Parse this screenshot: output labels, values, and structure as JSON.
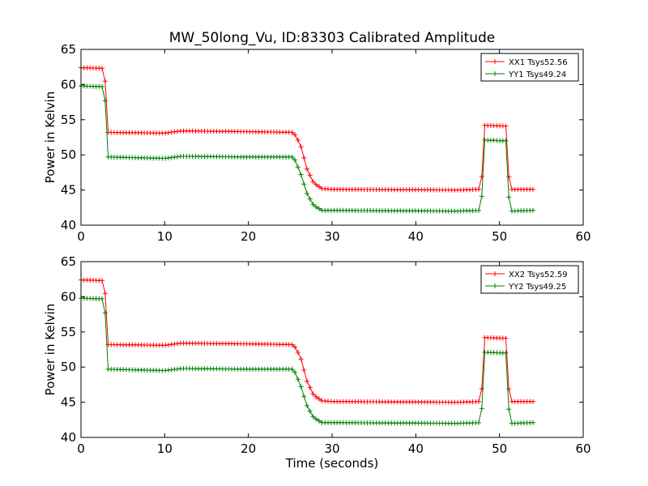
{
  "figure": {
    "title": "MW_50long_Vu, ID:83303 Calibrated Amplitude"
  },
  "chart_data": [
    {
      "type": "line",
      "title": "MW_50long_Vu, ID:83303 Calibrated Amplitude",
      "xlabel": "",
      "ylabel": "Power in Kelvin",
      "xlim": [
        0,
        60
      ],
      "ylim": [
        40,
        65
      ],
      "xticks": [
        0,
        10,
        20,
        30,
        40,
        50,
        60
      ],
      "yticks": [
        40,
        45,
        50,
        55,
        60,
        65
      ],
      "grid": false,
      "legend_position": "top-right",
      "marker": "+",
      "series": [
        {
          "name": "XX1 Tsys52.56",
          "color": "#ff0000",
          "profile": [
            [
              0,
              62.4
            ],
            [
              2.8,
              62.3
            ],
            [
              3.2,
              53.2
            ],
            [
              10,
              53.1
            ],
            [
              12,
              53.4
            ],
            [
              20,
              53.3
            ],
            [
              25.4,
              53.2
            ],
            [
              26.2,
              51.5
            ],
            [
              27.0,
              48.0
            ],
            [
              27.8,
              46.0
            ],
            [
              28.8,
              45.2
            ],
            [
              30,
              45.1
            ],
            [
              45,
              45.0
            ],
            [
              47.8,
              45.1
            ],
            [
              48.2,
              54.2
            ],
            [
              50.8,
              54.1
            ],
            [
              51.2,
              45.1
            ],
            [
              54.2,
              45.1
            ]
          ]
        },
        {
          "name": "YY1 Tsys49.24",
          "color": "#008000",
          "profile": [
            [
              0,
              59.8
            ],
            [
              2.8,
              59.7
            ],
            [
              3.2,
              49.7
            ],
            [
              10,
              49.5
            ],
            [
              12,
              49.8
            ],
            [
              20,
              49.7
            ],
            [
              25.4,
              49.7
            ],
            [
              26.2,
              47.5
            ],
            [
              27.0,
              44.5
            ],
            [
              27.8,
              42.8
            ],
            [
              28.8,
              42.1
            ],
            [
              30,
              42.1
            ],
            [
              45,
              42.0
            ],
            [
              47.8,
              42.1
            ],
            [
              48.2,
              52.1
            ],
            [
              50.8,
              52.0
            ],
            [
              51.2,
              42.0
            ],
            [
              54.2,
              42.1
            ]
          ]
        }
      ]
    },
    {
      "type": "line",
      "title": "",
      "xlabel": "Time (seconds)",
      "ylabel": "Power in Kelvin",
      "xlim": [
        0,
        60
      ],
      "ylim": [
        40,
        65
      ],
      "xticks": [
        0,
        10,
        20,
        30,
        40,
        50,
        60
      ],
      "yticks": [
        40,
        45,
        50,
        55,
        60,
        65
      ],
      "grid": false,
      "legend_position": "top-right",
      "marker": "+",
      "series": [
        {
          "name": "XX2 Tsys52.59",
          "color": "#ff0000",
          "profile": [
            [
              0,
              62.4
            ],
            [
              2.8,
              62.3
            ],
            [
              3.2,
              53.2
            ],
            [
              10,
              53.1
            ],
            [
              12,
              53.4
            ],
            [
              20,
              53.3
            ],
            [
              25.4,
              53.2
            ],
            [
              26.2,
              51.5
            ],
            [
              27.0,
              48.0
            ],
            [
              27.8,
              46.0
            ],
            [
              28.8,
              45.2
            ],
            [
              30,
              45.1
            ],
            [
              45,
              45.0
            ],
            [
              47.8,
              45.1
            ],
            [
              48.2,
              54.2
            ],
            [
              50.8,
              54.1
            ],
            [
              51.2,
              45.1
            ],
            [
              54.2,
              45.1
            ]
          ]
        },
        {
          "name": "YY2 Tsys49.25",
          "color": "#008000",
          "profile": [
            [
              0,
              59.8
            ],
            [
              2.8,
              59.7
            ],
            [
              3.2,
              49.7
            ],
            [
              10,
              49.5
            ],
            [
              12,
              49.8
            ],
            [
              20,
              49.7
            ],
            [
              25.4,
              49.7
            ],
            [
              26.2,
              47.5
            ],
            [
              27.0,
              44.5
            ],
            [
              27.8,
              42.8
            ],
            [
              28.8,
              42.1
            ],
            [
              30,
              42.1
            ],
            [
              45,
              42.0
            ],
            [
              47.8,
              42.1
            ],
            [
              48.2,
              52.1
            ],
            [
              50.8,
              52.0
            ],
            [
              51.2,
              42.0
            ],
            [
              54.2,
              42.1
            ]
          ]
        }
      ]
    }
  ]
}
